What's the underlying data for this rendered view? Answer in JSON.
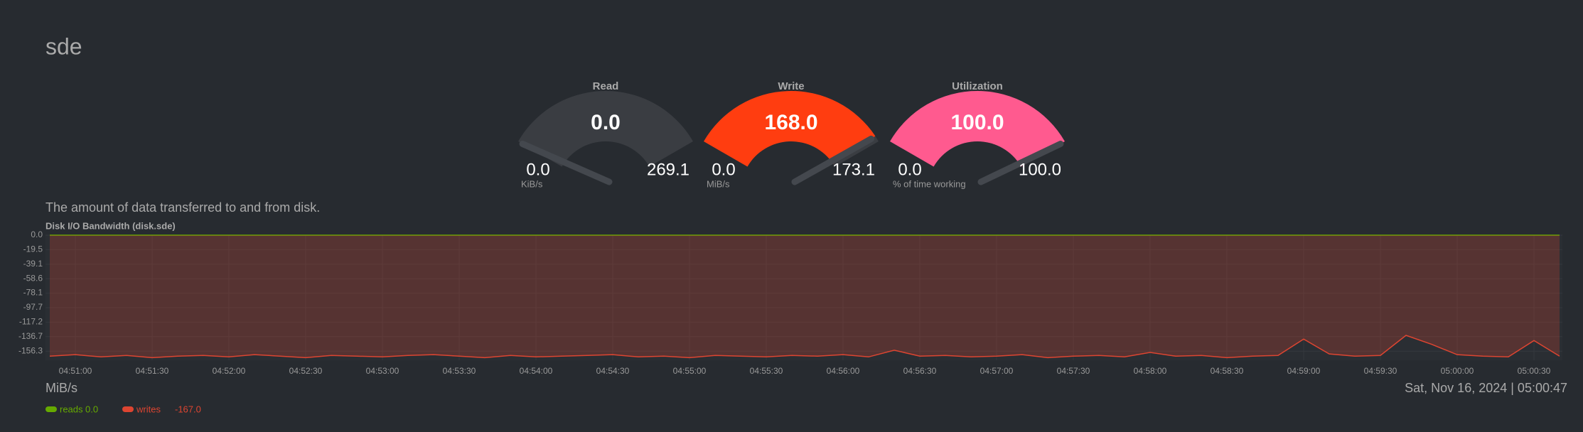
{
  "page_title": "sde",
  "gauges": [
    {
      "title": "Read",
      "value": {
        "value": 0,
        "label": "0.0"
      },
      "min": {
        "value": 0,
        "label": "0.0"
      },
      "max": 269.1,
      "unit": "KiB/s",
      "color": "#3a3d42"
    },
    {
      "title": "Write",
      "value": {
        "value": 168,
        "label": "168.0"
      },
      "min": {
        "value": 0,
        "label": "0.0"
      },
      "max": 173.1,
      "unit": "MiB/s",
      "color": "#ff3d10"
    },
    {
      "title": "Utilization",
      "value": {
        "value": 100,
        "label": "100.0"
      },
      "min": {
        "value": 0,
        "label": "0.0"
      },
      "max": {
        "value": 100,
        "label": "100.0"
      },
      "unit": "% of time working",
      "color": "#ff5a8f"
    }
  ],
  "description": "The amount of data transferred to and from disk.",
  "chart_data": {
    "type": "area",
    "title": "Disk I/O Bandwidth (disk.sde)",
    "y_label": "MiB/s",
    "timestamp": "Sat, Nov 16, 2024 | 05:00:47",
    "x": [
      "04:50:50",
      "04:51:00",
      "04:51:10",
      "04:51:20",
      "04:51:30",
      "04:51:40",
      "04:51:50",
      "04:52:00",
      "04:52:10",
      "04:52:20",
      "04:52:30",
      "04:52:40",
      "04:52:50",
      "04:53:00",
      "04:53:10",
      "04:53:20",
      "04:53:30",
      "04:53:40",
      "04:53:50",
      "04:54:00",
      "04:54:10",
      "04:54:20",
      "04:54:30",
      "04:54:40",
      "04:54:50",
      "04:55:00",
      "04:55:10",
      "04:55:20",
      "04:55:30",
      "04:55:40",
      "04:55:50",
      "04:56:00",
      "04:56:10",
      "04:56:20",
      "04:56:30",
      "04:56:40",
      "04:56:50",
      "04:57:00",
      "04:57:10",
      "04:57:20",
      "04:57:30",
      "04:57:40",
      "04:57:50",
      "04:58:00",
      "04:58:10",
      "04:58:20",
      "04:58:30",
      "04:58:40",
      "04:58:50",
      "04:59:00",
      "04:59:10",
      "04:59:20",
      "04:59:30",
      "04:59:40",
      "04:59:50",
      "05:00:00",
      "05:00:10",
      "05:00:20",
      "05:00:30",
      "05:00:40"
    ],
    "xticks": [
      "04:51:00",
      "04:51:30",
      "04:52:00",
      "04:52:30",
      "04:53:00",
      "04:53:30",
      "04:54:00",
      "04:54:30",
      "04:55:00",
      "04:55:30",
      "04:56:00",
      "04:56:30",
      "04:57:00",
      "04:57:30",
      "04:58:00",
      "04:58:30",
      "04:59:00",
      "04:59:30",
      "05:00:00",
      "05:00:30"
    ],
    "ylim": [
      -168.5,
      0
    ],
    "yticks": [
      {
        "value": 0,
        "label": "0.0"
      },
      -19.5,
      -39.1,
      -58.6,
      -78.1,
      -97.7,
      -117.2,
      -136.7,
      -156.3
    ],
    "series": [
      {
        "name": "reads",
        "color": "#66aa00",
        "latest": "0.0",
        "values": [
          0,
          0,
          0,
          0,
          0,
          0,
          0,
          0,
          0,
          0,
          0,
          0,
          0,
          0,
          0,
          0,
          0,
          0,
          0,
          0,
          0,
          0,
          0,
          0,
          0,
          0,
          0,
          0,
          0,
          0,
          0,
          0,
          0,
          0,
          0,
          0,
          0,
          0,
          0,
          0,
          0,
          0,
          0,
          0,
          0,
          0,
          0,
          0,
          0,
          0,
          0,
          0,
          0,
          0,
          0,
          0,
          0,
          0,
          0,
          0
        ]
      },
      {
        "name": "writes",
        "color": "#dd4531",
        "latest": "-167.0",
        "values": [
          -163,
          -161,
          -164,
          -162,
          -165,
          -163,
          -162,
          -164,
          -161,
          -163,
          -165,
          -162,
          -163,
          -164,
          -162,
          -161,
          -163,
          -165,
          -162,
          -164,
          -163,
          -162,
          -161,
          -164,
          -163,
          -165,
          -162,
          -163,
          -164,
          -162,
          -163,
          -161,
          -164,
          -155,
          -163,
          -162,
          -164,
          -163,
          -161,
          -165,
          -163,
          -162,
          -164,
          -158,
          -163,
          -162,
          -165,
          -163,
          -162,
          -140,
          -160,
          -163,
          -162,
          -135,
          -147,
          -161,
          -163,
          -164,
          -142,
          -163
        ]
      }
    ]
  }
}
